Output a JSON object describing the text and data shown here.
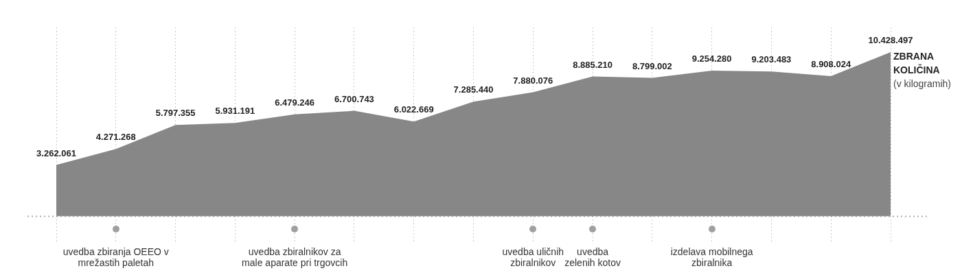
{
  "chart_data": {
    "type": "area",
    "categories": [
      null,
      "uvedba zbiranja OEEO v\nmrežastih paletah",
      null,
      null,
      "uvedba zbiralnikov za\nmale aparate pri trgovcih",
      null,
      null,
      null,
      "uvedba uličnih\nzbiralnikov",
      "uvedba\nzelenih kotov",
      null,
      "izdelava mobilnega\nzbiralnika",
      null,
      null,
      null
    ],
    "series": [
      {
        "name": "ZBRANA KOLIČINA",
        "color": "#878787",
        "values": [
          3262061,
          4271268,
          5797355,
          5931191,
          6479246,
          6700743,
          6022669,
          7285440,
          7880076,
          8885210,
          8799002,
          9254280,
          9203483,
          8908024,
          10428497
        ],
        "value_labels": [
          "3.262.061",
          "4.271.268",
          "5.797.355",
          "5.931.191",
          "6.479.246",
          "6.700.743",
          "6.022.669",
          "7.285.440",
          "7.880.076",
          "8.885.210",
          "8.799.002",
          "9.254.280",
          "9.203.483",
          "8.908.024",
          "10.428.497"
        ]
      }
    ],
    "ylabel": "(v kilogramih)",
    "grid": "x",
    "legend": false,
    "marker": "none",
    "tick_labels": "x"
  }
}
